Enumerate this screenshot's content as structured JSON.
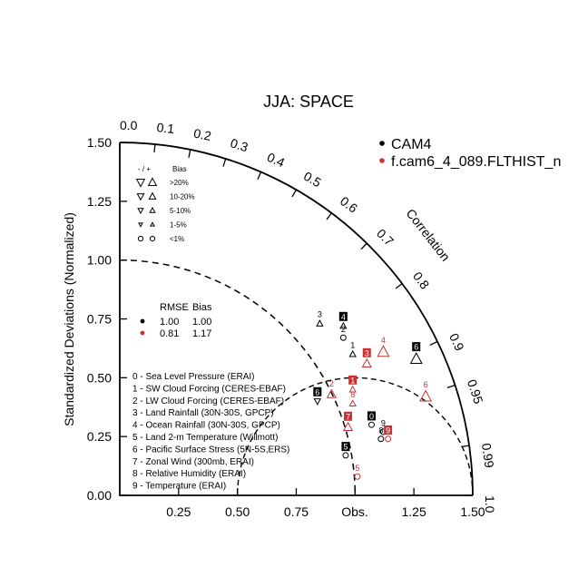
{
  "chart_data": {
    "type": "scatter",
    "subtype": "taylor-diagram",
    "title": "JJA: SPACE",
    "ylabel": "Standardized Deviations (Normalized)",
    "xlabel": "",
    "obs_label": "Obs.",
    "arc_label": "Correlation",
    "ylim": [
      0,
      1.5
    ],
    "xlim": [
      0,
      1.5
    ],
    "x_ticks": [
      "0.25",
      "0.50",
      "0.75",
      "1.25",
      "1.50"
    ],
    "y_ticks": [
      "0.00",
      "0.25",
      "0.50",
      "0.75",
      "1.00",
      "1.25",
      "1.50"
    ],
    "correlation_ticks": [
      "0.0",
      "0.1",
      "0.2",
      "0.3",
      "0.4",
      "0.5",
      "0.6",
      "0.7",
      "0.8",
      "0.9",
      "0.95",
      "0.99",
      "1.0"
    ],
    "colors": {
      "CAM4": "#000000",
      "f.cam6_4_089.FLTHIST_n": "#c83232"
    },
    "legend": {
      "placement": "top-right",
      "entries": [
        {
          "name": "CAM4",
          "color": "#000000"
        },
        {
          "name": "f.cam6_4_089.FLTHIST_n",
          "color": "#c83232"
        }
      ]
    },
    "bias_key": {
      "header_left": "- / +",
      "header_right": "Bias",
      "rows": [
        ">20%",
        "10-20%",
        "5-10%",
        "1-5%",
        "<1%"
      ]
    },
    "summary": {
      "headers": [
        "RMSE",
        "Bias"
      ],
      "rows": [
        {
          "color": "#000000",
          "rmse": "1.00",
          "bias": "1.00"
        },
        {
          "color": "#c83232",
          "rmse": "0.81",
          "bias": "1.17"
        }
      ]
    },
    "variables": [
      "0 - Sea Level Pressure (ERAI)",
      "1 - SW Cloud Forcing (CERES-EBAF)",
      "2 - LW Cloud Forcing (CERES-EBAF)",
      "3 - Land Rainfall (30N-30S, GPCP)",
      "4 - Ocean Rainfall (30N-30S, GPCP)",
      "5 - Land 2-m Temperature (Willmott)",
      "6 - Pacific Surface Stress (5N-5S,ERS)",
      "7 - Zonal Wind (300mb, ERAI)",
      "8 - Relative Humidity (ERAI)",
      "9 - Temperature (ERAI)"
    ],
    "series": [
      {
        "name": "CAM4",
        "color": "#000000",
        "points": [
          {
            "id": "0",
            "x": 1.07,
            "y": 0.3,
            "boxed": true,
            "marker": "circle",
            "size": 0
          },
          {
            "id": "1",
            "x": 0.99,
            "y": 0.6,
            "boxed": false,
            "marker": "up",
            "size": 1
          },
          {
            "id": "2",
            "x": 0.95,
            "y": 0.67,
            "boxed": false,
            "marker": "circle",
            "size": 0
          },
          {
            "id": "3",
            "x": 0.85,
            "y": 0.73,
            "boxed": false,
            "marker": "up",
            "size": 1
          },
          {
            "id": "4",
            "x": 0.95,
            "y": 0.72,
            "boxed": true,
            "marker": "up",
            "size": 1
          },
          {
            "id": "5",
            "x": 0.96,
            "y": 0.17,
            "boxed": true,
            "marker": "circle",
            "size": 0
          },
          {
            "id": "6",
            "x": 0.84,
            "y": 0.4,
            "boxed": true,
            "marker": "down",
            "size": 1
          },
          {
            "id": "6",
            "x": 1.26,
            "y": 0.58,
            "boxed": true,
            "marker": "up",
            "size": 3
          },
          {
            "id": "8",
            "x": 1.11,
            "y": 0.24,
            "boxed": false,
            "marker": "circle",
            "size": 0
          },
          {
            "id": "9",
            "x": 1.12,
            "y": 0.27,
            "boxed": false,
            "marker": "circle",
            "size": 0
          }
        ]
      },
      {
        "name": "f.cam6_4_089.FLTHIST_n",
        "color": "#c83232",
        "points": [
          {
            "id": "1",
            "x": 0.99,
            "y": 0.45,
            "boxed": true,
            "marker": "up",
            "size": 1
          },
          {
            "id": "2",
            "x": 0.9,
            "y": 0.43,
            "boxed": false,
            "marker": "up",
            "size": 2
          },
          {
            "id": "3",
            "x": 1.05,
            "y": 0.56,
            "boxed": true,
            "marker": "up",
            "size": 2
          },
          {
            "id": "4",
            "x": 1.12,
            "y": 0.61,
            "boxed": false,
            "marker": "up",
            "size": 3
          },
          {
            "id": "5",
            "x": 1.01,
            "y": 0.08,
            "boxed": false,
            "marker": "circle",
            "size": 0
          },
          {
            "id": "6",
            "x": 1.3,
            "y": 0.42,
            "boxed": false,
            "marker": "up",
            "size": 3
          },
          {
            "id": "7",
            "x": 0.97,
            "y": 0.29,
            "boxed": true,
            "marker": "up",
            "size": 2
          },
          {
            "id": "8",
            "x": 0.99,
            "y": 0.39,
            "boxed": false,
            "marker": "up",
            "size": 1
          },
          {
            "id": "9",
            "x": 1.14,
            "y": 0.24,
            "boxed": true,
            "marker": "circle",
            "size": 0
          }
        ]
      }
    ]
  }
}
